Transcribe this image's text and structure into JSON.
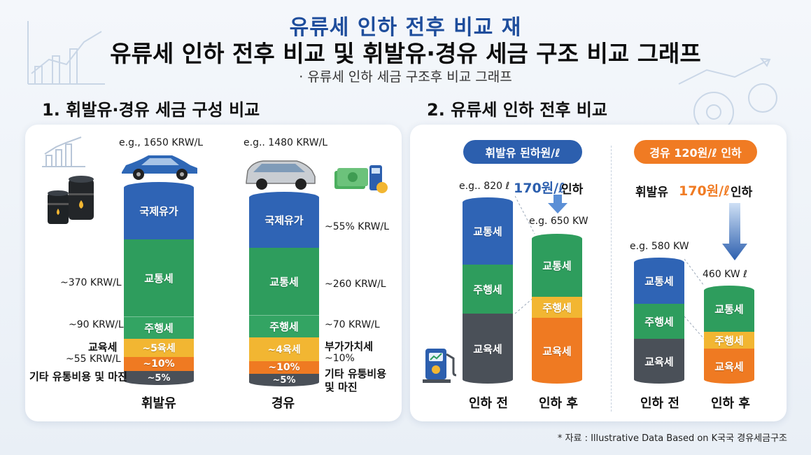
{
  "header": {
    "top_title": "유류세 인하 전후 비교  재",
    "main_title": "유류세 인하 전후 비교 및 휘발유·경유 세금 구조 비교 그래프",
    "subtitle": "· 유류세 인하 세금 구조후 비교 그래프"
  },
  "sections": {
    "left_title": "1. 휘발유·경유 세금 구성 비교",
    "right_title": "2. 유류세 인하 전후 비교"
  },
  "left_chart": {
    "gasoline": {
      "price_label": "e.g., 1650 KRW/L",
      "category": "휘발유",
      "segments": [
        "국제유가",
        "교통세",
        "주행세",
        "~5육세",
        "~10%",
        "~5%"
      ],
      "left_labels": [
        "~370 KRW/L",
        "~90 KRW/L",
        "교육세",
        "~55 KRW/L",
        "기타 유통비용 및 마진"
      ]
    },
    "diesel": {
      "price_label": "e.g.. 1480 KRW/L",
      "category": "경유",
      "segments": [
        "국제유가",
        "교통세",
        "주행세",
        "~4육세",
        "~10%",
        "~5%"
      ],
      "right_labels": [
        "~55% KRW/L",
        "~260 KRW/L",
        "~70 KRW/L",
        "부가가치세",
        "~10%",
        "기타 유퉁비용",
        "및 마진"
      ]
    }
  },
  "right_chart_gasoline": {
    "pill": "휘발유 된하원/ℓ",
    "before_label": "e.g.. 820 ℓ",
    "reduction_text": "170원/ℓ",
    "reduction_suffix": "인하",
    "after_label": "e.g. 650 KW",
    "before_segments": [
      "교통세",
      "주행세",
      "교육세"
    ],
    "after_segments": [
      "교통세",
      "주행세",
      "교육세"
    ],
    "before_category": "인하 전",
    "after_category": "인하 후"
  },
  "right_chart_diesel": {
    "pill": "경유 120원/ℓ 인하",
    "note_prefix": "휘발유",
    "note_highlight": "170원/ℓ",
    "note_suffix": "인하",
    "before_label": "e.g. 580 KW",
    "after_label": "460 KW ℓ",
    "before_segments": [
      "교통세",
      "주행세",
      "교육세"
    ],
    "after_segments": [
      "교통세",
      "주행세",
      "교육세"
    ],
    "before_category": "인하 전",
    "after_category": "인하 후"
  },
  "footnote": "* 자료 : Illustrative Data Based on K국국 경유세금구조",
  "colors": {
    "blue": "#2f64b5",
    "green": "#2e9d5d",
    "yellow": "#f2b632",
    "orange": "#ef7a22",
    "gray": "#4a5058",
    "title_blue": "#1e4d9c",
    "pill_blue": "#2c5fae",
    "pill_orange": "#f07b23"
  },
  "chart_data": [
    {
      "type": "bar",
      "title": "1. 휘발유·경유 세금 구성 비교",
      "categories": [
        "휘발유",
        "경유"
      ],
      "stacked": true,
      "series": [
        {
          "name": "국제유가",
          "values": [
            null,
            null
          ]
        },
        {
          "name": "교통세",
          "values": [
            370,
            260
          ]
        },
        {
          "name": "주행세",
          "values": [
            90,
            70
          ]
        },
        {
          "name": "교육세",
          "values": [
            55,
            null
          ]
        },
        {
          "name": "부가가치세",
          "values": [
            null,
            null
          ]
        },
        {
          "name": "기타 유통비용 및 마진",
          "values": [
            null,
            null
          ]
        }
      ],
      "totals": [
        1650,
        1480
      ]
    },
    {
      "type": "bar",
      "title": "2. 유류세 인하 전후 비교",
      "categories": [
        "인하 전",
        "인하 후"
      ],
      "stacked": true,
      "series": [
        {
          "name": "교통세",
          "values": [
            null,
            null
          ]
        },
        {
          "name": "주행세",
          "values": [
            null,
            null
          ]
        },
        {
          "name": "교육세",
          "values": [
            null,
            null
          ]
        }
      ],
      "totals": [
        820,
        650
      ]
    },
    {
      "type": "bar",
      "categories": [
        "인하 전",
        "인하 후"
      ],
      "stacked": true,
      "series": [
        {
          "name": "교통세",
          "values": [
            null,
            null
          ]
        },
        {
          "name": "주행세",
          "values": [
            null,
            null
          ]
        },
        {
          "name": "교육세",
          "values": [
            null,
            null
          ]
        }
      ],
      "totals": [
        580,
        460
      ]
    }
  ]
}
